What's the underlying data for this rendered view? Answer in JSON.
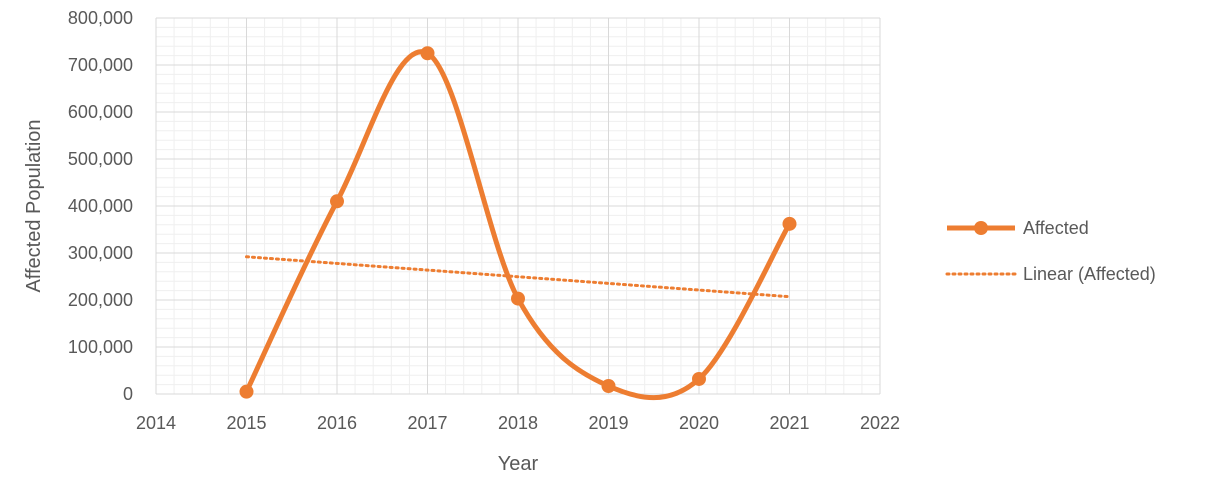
{
  "chart_data": {
    "type": "scatter",
    "title": "",
    "xlabel": "Year",
    "ylabel": "Affected Population",
    "xlim": [
      2014,
      2022
    ],
    "ylim": [
      0,
      800000
    ],
    "x_ticks": [
      "2014",
      "2015",
      "2016",
      "2017",
      "2018",
      "2019",
      "2020",
      "2021",
      "2022"
    ],
    "y_ticks": [
      "0",
      "100,000",
      "200,000",
      "300,000",
      "400,000",
      "500,000",
      "600,000",
      "700,000",
      "800,000"
    ],
    "grid": true,
    "legend_position": "right",
    "series": [
      {
        "name": "Affected",
        "style": "smooth line with markers",
        "color": "#ED7D31",
        "x": [
          2015,
          2016,
          2017,
          2018,
          2019,
          2020,
          2021
        ],
        "y": [
          5000,
          410000,
          725000,
          203000,
          17000,
          32000,
          362000
        ]
      }
    ],
    "trendline": {
      "name": "Linear (Affected)",
      "style": "dotted",
      "color": "#ED7D31",
      "x": [
        2015,
        2021
      ],
      "y": [
        292000,
        207000
      ]
    }
  }
}
